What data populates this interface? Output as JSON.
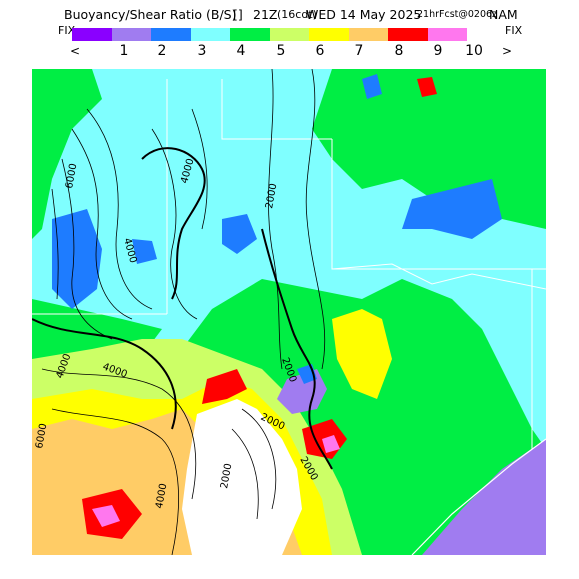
{
  "header": {
    "title": "Buoyancy/Shear Ratio (B/S)",
    "separator": "[]",
    "valid_time": "21Z",
    "valid_local": "(16cdt)",
    "valid_date": "WED 14 May 2025",
    "forecast_info": "21hrFcst@0206z",
    "model": "NAM"
  },
  "color_scale": {
    "fix_left": "FIX",
    "fix_right": "FIX",
    "less_arrow": "<",
    "more_arrow": ">",
    "colors": [
      "#8a00ff",
      "#a07cf0",
      "#1e7cff",
      "#7fffff",
      "#00ee44",
      "#ccff66",
      "#ffff00",
      "#ffcc66",
      "#ff0000",
      "#ff77ee"
    ],
    "tick_labels": [
      "1",
      "2",
      "3",
      "4",
      "5",
      "6",
      "7",
      "8",
      "9",
      "10"
    ]
  },
  "map": {
    "contour_labels": [
      "6000",
      "4000",
      "4000",
      "2000",
      "2000",
      "2000",
      "2000",
      "4000",
      "4000",
      "6000",
      "4000",
      "2000"
    ],
    "fill_colors": {
      "cyan": "#7fffff",
      "green": "#00ee44",
      "blue": "#1e7cff",
      "lime": "#ccff66",
      "yellow": "#ffff00",
      "orange": "#ffcc66",
      "red": "#ff0000",
      "pink": "#ff77ee",
      "purple": "#a07cf0",
      "white": "#ffffff"
    }
  }
}
